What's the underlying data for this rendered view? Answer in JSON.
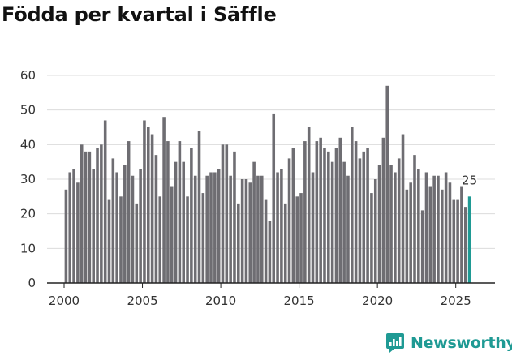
{
  "chart_data": {
    "type": "bar",
    "title": "Födda per kvartal i Säffle",
    "xlabel": "",
    "ylabel": "",
    "ylim": [
      0,
      60
    ],
    "yticks": [
      0,
      10,
      20,
      30,
      40,
      50,
      60
    ],
    "xticks": [
      2000,
      2005,
      2010,
      2015,
      2020,
      2025
    ],
    "grid": true,
    "start_year": 2000,
    "start_quarter": 1,
    "values": [
      27,
      32,
      33,
      29,
      40,
      38,
      38,
      33,
      39,
      40,
      47,
      24,
      36,
      32,
      25,
      34,
      41,
      31,
      23,
      33,
      47,
      45,
      43,
      37,
      25,
      48,
      41,
      28,
      35,
      41,
      35,
      25,
      39,
      31,
      44,
      26,
      31,
      32,
      32,
      33,
      40,
      40,
      31,
      38,
      23,
      30,
      30,
      29,
      35,
      31,
      31,
      24,
      18,
      49,
      32,
      33,
      23,
      36,
      39,
      25,
      26,
      41,
      45,
      32,
      41,
      42,
      39,
      38,
      35,
      39,
      42,
      35,
      31,
      45,
      41,
      36,
      38,
      39,
      26,
      30,
      34,
      42,
      57,
      34,
      32,
      36,
      43,
      27,
      29,
      37,
      33,
      21,
      32,
      28,
      31,
      31,
      27,
      32,
      29,
      24,
      24,
      28,
      22,
      25
    ],
    "series_color": "#6e6d72",
    "highlight_color": "#1f9a94",
    "last_label": "25"
  },
  "branding": {
    "name": "Newsworthy"
  }
}
